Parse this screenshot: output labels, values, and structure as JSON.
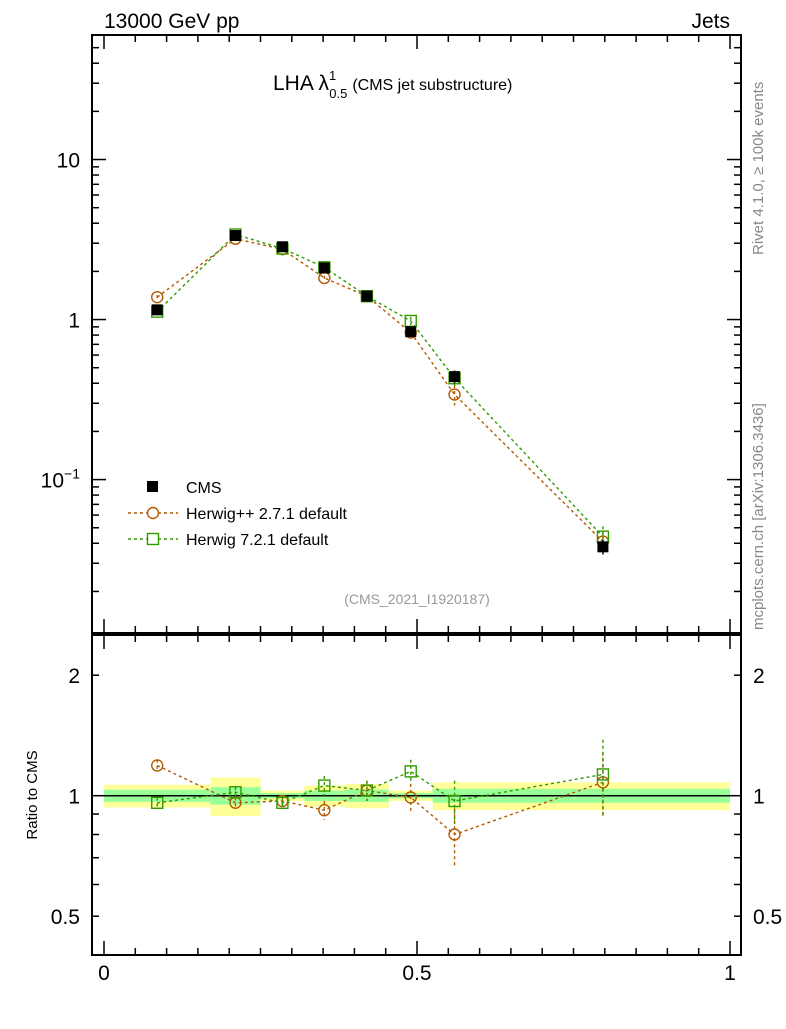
{
  "header": {
    "left": "13000 GeV pp",
    "right": "Jets"
  },
  "side_labels": {
    "rivet": "Rivet 4.1.0, ≥ 100k events",
    "mcplots": "mcplots.cern.ch [arXiv:1306.3436]"
  },
  "chart_data": [
    {
      "type": "scatter",
      "title_main": "LHA λ",
      "title_sup": "1",
      "title_sub": "0.5",
      "title_rest": "(CMS jet substructure)",
      "analysis_label": "(CMS_2021_I1920187)",
      "yscale": "log",
      "ylim": [
        0.011,
        60
      ],
      "xlim": [
        0,
        1
      ],
      "ytick_labels": [
        {
          "v": 10,
          "t": "10"
        },
        {
          "v": 1,
          "t": "1"
        },
        {
          "v": 0.1,
          "t": "10",
          "sup": "−1"
        }
      ],
      "legend_placement": "bottom-left",
      "bin_edges": [
        0,
        0.17,
        0.25,
        0.32,
        0.385,
        0.455,
        0.525,
        0.595,
        1.0
      ],
      "x": [
        0.085,
        0.21,
        0.285,
        0.352,
        0.42,
        0.49,
        0.56,
        0.797
      ],
      "series": [
        {
          "name": "CMS",
          "marker": "filled-square",
          "color": "#000000",
          "values": [
            1.15,
            3.35,
            2.85,
            2.1,
            1.4,
            0.84,
            0.44,
            0.038
          ],
          "err": [
            0.05,
            0.12,
            0.1,
            0.08,
            0.06,
            0.05,
            0.04,
            0.004
          ]
        },
        {
          "name": "Herwig++ 2.7.1 default",
          "marker": "open-circle",
          "color": "#b35900",
          "values": [
            1.38,
            3.2,
            2.75,
            1.82,
            1.4,
            0.83,
            0.34,
            0.041
          ],
          "err": [
            0.04,
            0.08,
            0.08,
            0.06,
            0.05,
            0.05,
            0.05,
            0.007
          ]
        },
        {
          "name": "Herwig 7.2.1 default",
          "marker": "open-square",
          "color": "#339900",
          "values": [
            1.12,
            3.4,
            2.78,
            2.12,
            1.4,
            0.98,
            0.43,
            0.044
          ],
          "err": [
            0.03,
            0.08,
            0.07,
            0.06,
            0.05,
            0.06,
            0.05,
            0.007
          ]
        }
      ]
    },
    {
      "type": "scatter",
      "ylabel": "Ratio to CMS",
      "yscale": "log",
      "ylim": [
        0.4,
        2.52
      ],
      "xlim": [
        0,
        1
      ],
      "ytick_labels": [
        {
          "v": 2,
          "t": "2"
        },
        {
          "v": 1,
          "t": "1"
        },
        {
          "v": 0.5,
          "t": "0.5"
        }
      ],
      "xtick_labels": [
        {
          "v": 0,
          "t": "0"
        },
        {
          "v": 0.5,
          "t": "0.5"
        },
        {
          "v": 1,
          "t": "1"
        }
      ],
      "band_yellow": [
        0.065,
        0.11,
        0.03,
        0.06,
        0.07,
        0.03,
        0.08,
        0.08
      ],
      "band_green": [
        0.035,
        0.05,
        0.015,
        0.03,
        0.035,
        0.015,
        0.04,
        0.04
      ],
      "series": [
        {
          "name": "Herwig++ 2.7.1 default",
          "color": "#b35900",
          "marker": "open-circle",
          "values": [
            1.19,
            0.96,
            0.97,
            0.92,
            1.03,
            0.99,
            0.8,
            1.08
          ],
          "err": [
            0.04,
            0.03,
            0.03,
            0.05,
            0.06,
            0.08,
            0.13,
            0.2
          ]
        },
        {
          "name": "Herwig 7.2.1 default",
          "color": "#339900",
          "marker": "open-square",
          "values": [
            0.96,
            1.02,
            0.96,
            1.06,
            1.03,
            1.15,
            0.97,
            1.13
          ],
          "err": [
            0.03,
            0.03,
            0.03,
            0.06,
            0.06,
            0.08,
            0.12,
            0.25
          ]
        }
      ]
    }
  ]
}
